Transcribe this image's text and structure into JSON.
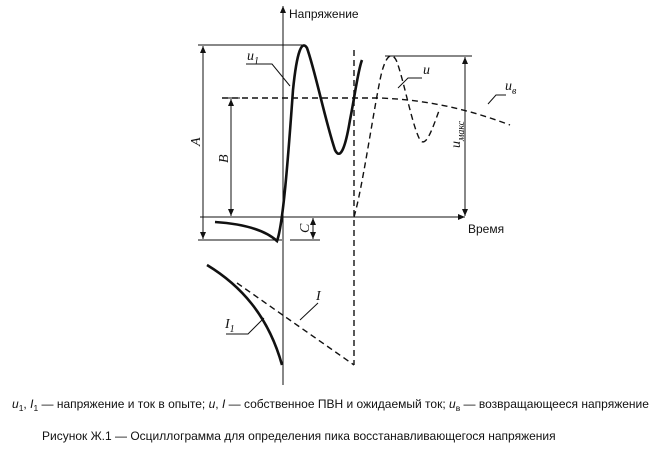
{
  "axes": {
    "y_label": "Напряжение",
    "x_label": "Время"
  },
  "labels": {
    "u1": {
      "base": "u",
      "sub": "1"
    },
    "u": {
      "base": "u"
    },
    "ub": {
      "base": "u",
      "sub": "в"
    },
    "umax": {
      "base": "u",
      "sub": "макс"
    },
    "A": {
      "base": "A"
    },
    "B": {
      "base": "B"
    },
    "C": {
      "base": "C"
    },
    "I": {
      "base": "I"
    },
    "I1": {
      "base": "I",
      "sub": "1"
    }
  },
  "legend": [
    {
      "text": "u",
      "italic": true
    },
    {
      "text": "1",
      "sub": true
    },
    {
      "text": ", "
    },
    {
      "text": "I",
      "italic": true
    },
    {
      "text": "1",
      "sub": true
    },
    {
      "text": " — напряжение и ток в опыте; "
    },
    {
      "text": "u",
      "italic": true
    },
    {
      "text": ", "
    },
    {
      "text": "I",
      "italic": true
    },
    {
      "text": " — собственное ПВН и ожидаемый ток; "
    },
    {
      "text": "u",
      "italic": true
    },
    {
      "text": "в",
      "sub": true
    },
    {
      "text": " — возвращающееся напряжение"
    }
  ],
  "caption": "Рисунок Ж.1 — Осциллограмма для определения пика восстанавливающегося напряжения"
}
